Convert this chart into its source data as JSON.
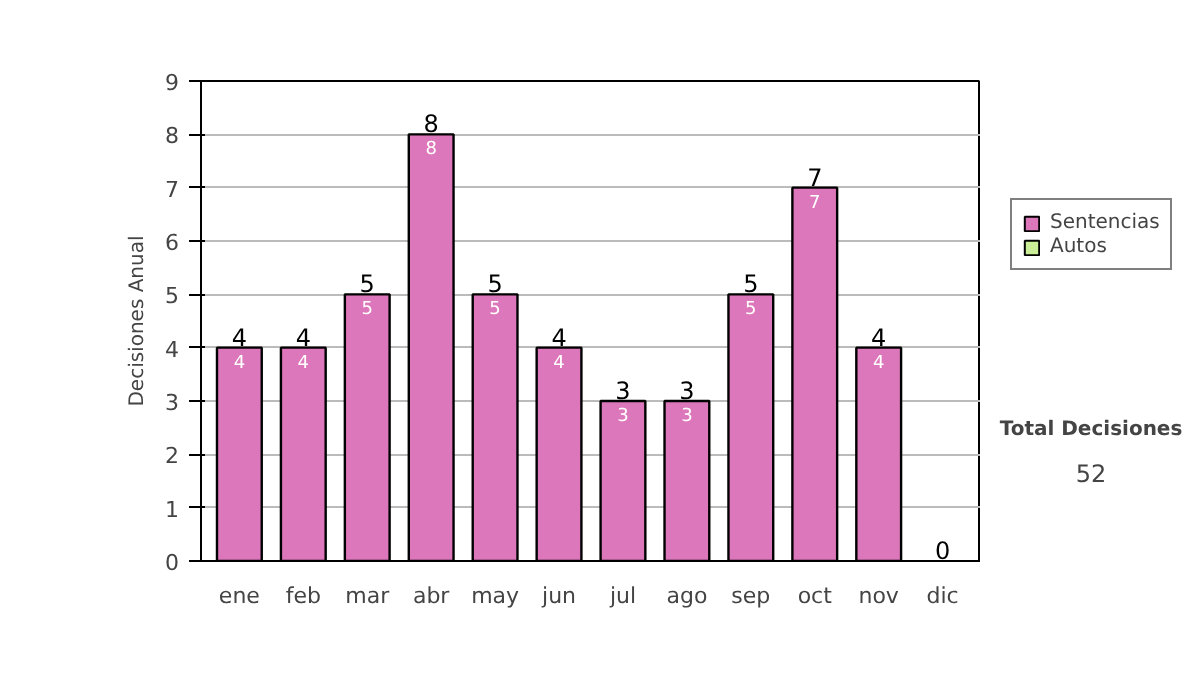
{
  "chart_data": {
    "type": "bar",
    "stacked": true,
    "ylabel": "Decisiones Anual",
    "categories": [
      "ene",
      "feb",
      "mar",
      "abr",
      "may",
      "jun",
      "jul",
      "ago",
      "sep",
      "oct",
      "nov",
      "dic"
    ],
    "series": [
      {
        "name": "Sentencias",
        "color": "#dd77bb",
        "values": [
          4,
          4,
          5,
          8,
          5,
          4,
          3,
          3,
          5,
          7,
          4,
          0
        ],
        "value_labels": [
          "4",
          "4",
          "5",
          "8",
          "5",
          "4",
          "3",
          "3",
          "5",
          "7",
          "4",
          null
        ]
      },
      {
        "name": "Autos",
        "color": "#ccee99",
        "values": [
          0,
          0,
          0,
          0,
          0,
          0,
          0,
          0,
          0,
          0,
          0,
          0
        ]
      }
    ],
    "totals": [
      "4",
      "4",
      "5",
      "8",
      "5",
      "4",
      "3",
      "3",
      "5",
      "7",
      "4",
      "0"
    ],
    "ylim": [
      0,
      9
    ],
    "yticks": [
      0,
      1,
      2,
      3,
      4,
      5,
      6,
      7,
      8,
      9
    ],
    "grid": "y",
    "legend": "right",
    "annotations": [
      "Total Decisiones",
      "52"
    ]
  }
}
